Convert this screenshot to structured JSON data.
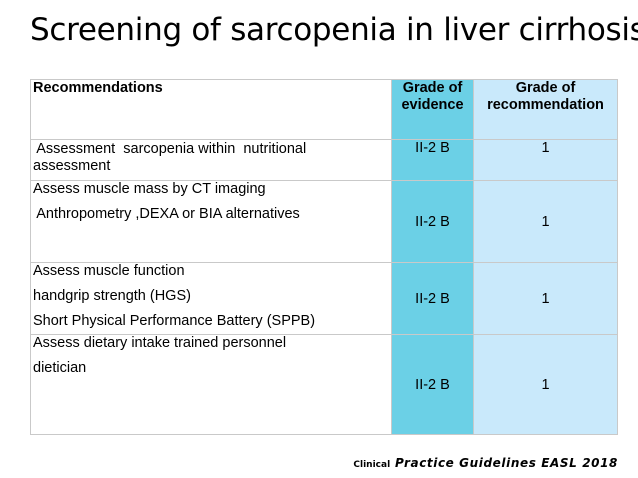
{
  "slide": {
    "title": "Screening of sarcopenia in liver cirrhosis"
  },
  "table": {
    "headers": {
      "recommendations": "Recommendations",
      "grade_of_evidence_line1": "Grade of",
      "grade_of_evidence_line2": "evidence",
      "grade_of_recommendation_line1": "Grade of",
      "grade_of_recommendation_line2": "recommendation"
    },
    "rows": [
      {
        "lines": [
          " Assessment  sarcopenia within  nutritional",
          "assessment"
        ],
        "evidence": "II-2 B",
        "grade": "1"
      },
      {
        "lines": [
          "Assess muscle mass by CT imaging",
          " Anthropometry ,DEXA or BIA alternatives"
        ],
        "evidence": "II-2 B",
        "grade": "1"
      },
      {
        "lines": [
          "Assess muscle function",
          "handgrip strength (HGS)",
          "Short Physical Performance Battery (SPPB)"
        ],
        "evidence": "II-2 B",
        "grade": "1"
      },
      {
        "lines": [
          "Assess dietary intake trained personnel",
          "dietician"
        ],
        "evidence": "II-2 B",
        "grade": "1"
      }
    ]
  },
  "citation": {
    "prefix": "Clinical",
    "text": "Practice Guidelines EASL 2018"
  },
  "colors": {
    "evidence_column": "#6bd0e6",
    "recommendation_column": "#c9e9fb"
  }
}
